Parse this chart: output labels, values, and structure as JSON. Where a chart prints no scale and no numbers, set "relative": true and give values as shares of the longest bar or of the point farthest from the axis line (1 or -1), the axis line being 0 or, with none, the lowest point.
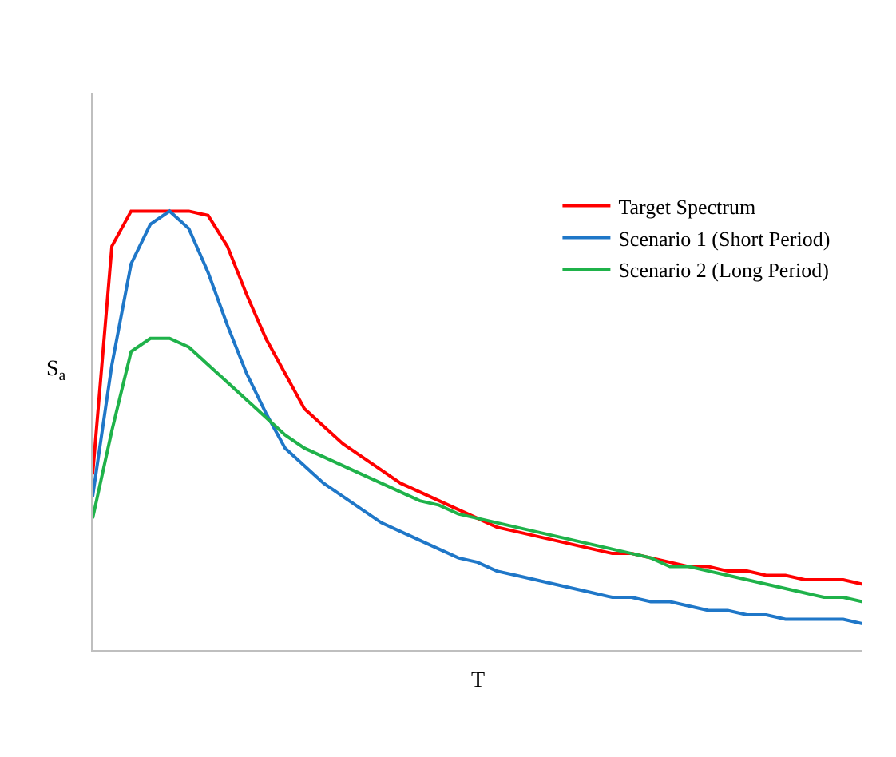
{
  "chart_data": {
    "type": "line",
    "relative": true,
    "xlabel": "T",
    "ylabel": "S$_{a}$",
    "legend": "top right",
    "marker": "none",
    "line_style": "solid",
    "categories": [
      null,
      null,
      null,
      null,
      null,
      null,
      null,
      null,
      null,
      null,
      null,
      null,
      null,
      null,
      null,
      null,
      null,
      null,
      null,
      null,
      null,
      null,
      null,
      null,
      null,
      null,
      null,
      null,
      null,
      null,
      null,
      null,
      null,
      null,
      null,
      null,
      null,
      null,
      null,
      null,
      null
    ],
    "series": [
      {
        "name": "Target Spectrum",
        "color": "#ff0000",
        "values": [
          0.4,
          0.92,
          1.0,
          1.0,
          1.0,
          1.0,
          0.99,
          0.92,
          0.81,
          0.71,
          0.63,
          0.55,
          0.51,
          0.47,
          0.44,
          0.41,
          0.38,
          0.36,
          0.34,
          0.32,
          0.3,
          0.28,
          0.27,
          0.26,
          0.25,
          0.24,
          0.23,
          0.22,
          0.22,
          0.21,
          0.2,
          0.19,
          0.19,
          0.18,
          0.18,
          0.17,
          0.17,
          0.16,
          0.16,
          0.16,
          0.15
        ]
      },
      {
        "name": "Scenario 1 (Short Period)",
        "color": "#1f77c8",
        "values": [
          0.35,
          0.65,
          0.88,
          0.97,
          1.0,
          0.96,
          0.86,
          0.74,
          0.63,
          0.54,
          0.46,
          0.42,
          0.38,
          0.35,
          0.32,
          0.29,
          0.27,
          0.25,
          0.23,
          0.21,
          0.2,
          0.18,
          0.17,
          0.16,
          0.15,
          0.14,
          0.13,
          0.12,
          0.12,
          0.11,
          0.11,
          0.1,
          0.09,
          0.09,
          0.08,
          0.08,
          0.07,
          0.07,
          0.07,
          0.07,
          0.06
        ]
      },
      {
        "name": "Scenario 2 (Long Period)",
        "color": "#1fb24a",
        "values": [
          0.3,
          0.5,
          0.68,
          0.71,
          0.71,
          0.69,
          0.65,
          0.61,
          0.57,
          0.53,
          0.49,
          0.46,
          0.44,
          0.42,
          0.4,
          0.38,
          0.36,
          0.34,
          0.33,
          0.31,
          0.3,
          0.29,
          0.28,
          0.27,
          0.26,
          0.25,
          0.24,
          0.23,
          0.22,
          0.21,
          0.19,
          0.19,
          0.18,
          0.17,
          0.16,
          0.15,
          0.14,
          0.13,
          0.12,
          0.12,
          0.11
        ]
      }
    ]
  }
}
